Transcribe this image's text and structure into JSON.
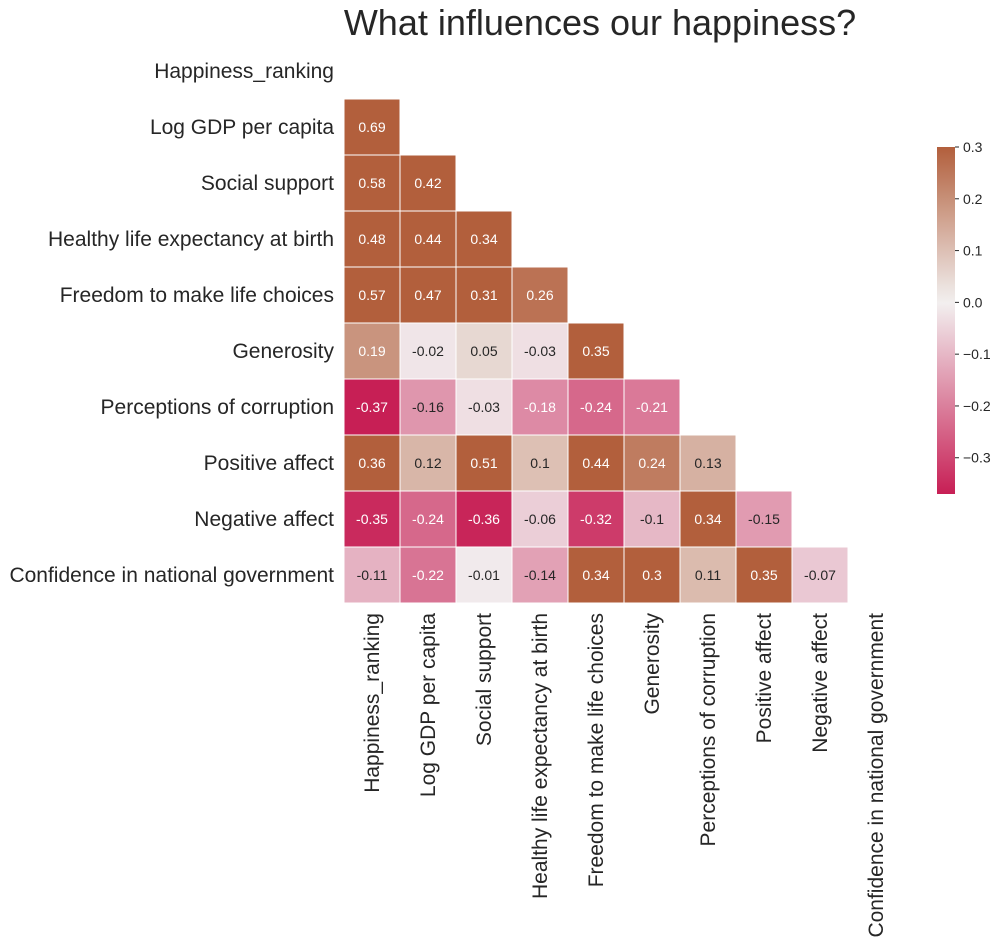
{
  "chart_data": {
    "type": "heatmap",
    "title": "What influences our happiness?",
    "variables": [
      "Happiness_ranking",
      "Log GDP per capita",
      "Social support",
      "Healthy life expectancy at birth",
      "Freedom to make life choices",
      "Generosity",
      "Perceptions of corruption",
      "Positive affect",
      "Negative affect",
      "Confidence in national government"
    ],
    "mask": "upper-triangle-including-diagonal",
    "matrix": [
      [
        null,
        null,
        null,
        null,
        null,
        null,
        null,
        null,
        null,
        null
      ],
      [
        0.69,
        null,
        null,
        null,
        null,
        null,
        null,
        null,
        null,
        null
      ],
      [
        0.58,
        0.42,
        null,
        null,
        null,
        null,
        null,
        null,
        null,
        null
      ],
      [
        0.48,
        0.44,
        0.34,
        null,
        null,
        null,
        null,
        null,
        null,
        null
      ],
      [
        0.57,
        0.47,
        0.31,
        0.26,
        null,
        null,
        null,
        null,
        null,
        null
      ],
      [
        0.19,
        -0.02,
        0.05,
        -0.03,
        0.35,
        null,
        null,
        null,
        null,
        null
      ],
      [
        -0.37,
        -0.16,
        -0.03,
        -0.18,
        -0.24,
        -0.21,
        null,
        null,
        null,
        null
      ],
      [
        0.36,
        0.12,
        0.51,
        0.1,
        0.44,
        0.24,
        0.13,
        null,
        null,
        null
      ],
      [
        -0.35,
        -0.24,
        -0.36,
        -0.06,
        -0.32,
        -0.1,
        0.34,
        -0.15,
        null,
        null
      ],
      [
        -0.11,
        -0.22,
        -0.01,
        -0.14,
        0.34,
        0.3,
        0.11,
        0.35,
        -0.07,
        null
      ]
    ],
    "vmin": -0.37,
    "vmax": 0.3,
    "center": 0,
    "colors": {
      "negative": "#c71f55",
      "center": "#f2f0f0",
      "positive": "#b25f3c"
    },
    "colorbar": {
      "ticks": [
        0.3,
        0.2,
        0.1,
        0.0,
        -0.1,
        -0.2,
        -0.3
      ],
      "tick_labels": [
        "0.3",
        "0.2",
        "0.1",
        "0.0",
        "−0.1",
        "−0.2",
        "−0.3"
      ]
    },
    "annotate": true,
    "legend": "right"
  }
}
